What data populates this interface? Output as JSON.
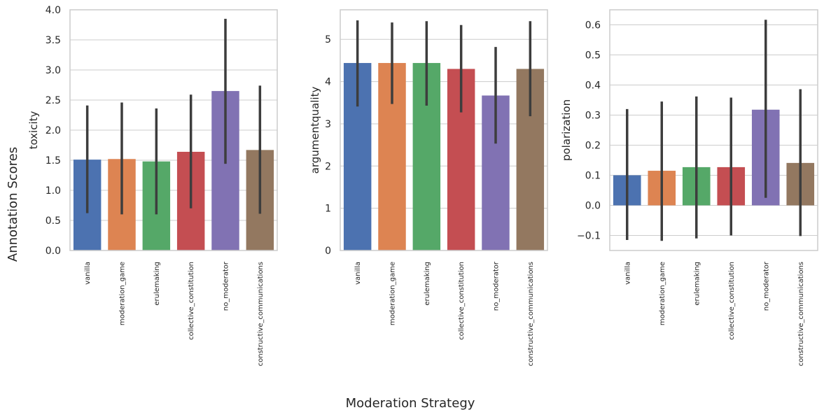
{
  "figure": {
    "supylabel": "Annotation Scores",
    "supxlabel": "Moderation Strategy"
  },
  "palette": [
    "#4c72b0",
    "#dd8452",
    "#55a868",
    "#c44e52",
    "#8172b3",
    "#937860"
  ],
  "chart_data": [
    {
      "type": "bar",
      "ylabel": "toxicity",
      "categories": [
        "vanilla",
        "moderation_game",
        "erulemaking",
        "collective_constitution",
        "no_moderator",
        "constructive_communications"
      ],
      "values": [
        1.51,
        1.52,
        1.48,
        1.64,
        2.65,
        1.67
      ],
      "error_low": [
        0.62,
        0.6,
        0.6,
        0.7,
        1.44,
        0.61
      ],
      "error_high": [
        2.41,
        2.46,
        2.36,
        2.59,
        3.85,
        2.74
      ],
      "ylim": [
        0,
        4.0
      ],
      "yticks": [
        0.0,
        0.5,
        1.0,
        1.5,
        2.0,
        2.5,
        3.0,
        3.5,
        4.0
      ],
      "ytick_labels": [
        "0.0",
        "0.5",
        "1.0",
        "1.5",
        "2.0",
        "2.5",
        "3.0",
        "3.5",
        "4.0"
      ],
      "grid": "y"
    },
    {
      "type": "bar",
      "ylabel": "argumentquality",
      "categories": [
        "vanilla",
        "moderation_game",
        "erulemaking",
        "collective_constitution",
        "no_moderator",
        "constructive_communications"
      ],
      "values": [
        4.44,
        4.44,
        4.44,
        4.3,
        3.67,
        4.3
      ],
      "error_low": [
        3.41,
        3.47,
        3.43,
        3.27,
        2.53,
        3.18
      ],
      "error_high": [
        5.45,
        5.4,
        5.43,
        5.34,
        4.82,
        5.43
      ],
      "ylim": [
        0,
        5.7
      ],
      "yticks": [
        0,
        1,
        2,
        3,
        4,
        5
      ],
      "ytick_labels": [
        "0",
        "1",
        "2",
        "3",
        "4",
        "5"
      ],
      "grid": "y"
    },
    {
      "type": "bar",
      "ylabel": "polarization",
      "categories": [
        "vanilla",
        "moderation_game",
        "erulemaking",
        "collective_constitution",
        "no_moderator",
        "constructive_communications"
      ],
      "values": [
        0.1,
        0.115,
        0.127,
        0.127,
        0.318,
        0.141
      ],
      "error_low": [
        -0.115,
        -0.118,
        -0.11,
        -0.1,
        0.025,
        -0.102
      ],
      "error_high": [
        0.32,
        0.345,
        0.362,
        0.358,
        0.617,
        0.386
      ],
      "ylim": [
        -0.15,
        0.65
      ],
      "yticks": [
        -0.1,
        0.0,
        0.1,
        0.2,
        0.3,
        0.4,
        0.5,
        0.6
      ],
      "ytick_labels": [
        "−0.1",
        "0.0",
        "0.1",
        "0.2",
        "0.3",
        "0.4",
        "0.5",
        "0.6"
      ],
      "grid": "y"
    }
  ]
}
